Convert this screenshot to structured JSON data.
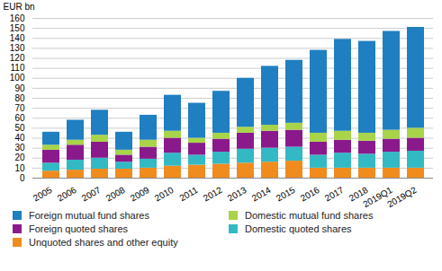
{
  "chart_data": {
    "type": "bar",
    "stacked": true,
    "grid": true,
    "y_label": "EUR bn",
    "categories": [
      "2005",
      "2006",
      "2007",
      "2008",
      "2009",
      "2010",
      "2011",
      "2012",
      "2013",
      "2014",
      "2015",
      "2016",
      "2017",
      "2018",
      "2019Q1",
      "2019Q2"
    ],
    "ylim": [
      0,
      160
    ],
    "yticks": [
      0,
      10,
      20,
      30,
      40,
      50,
      60,
      70,
      80,
      90,
      100,
      110,
      120,
      130,
      140,
      150,
      160
    ],
    "legend": "bottom",
    "series": [
      {
        "name": "Unquoted shares and other equity",
        "color": "#f08c1e",
        "values": [
          7,
          8,
          9,
          9,
          10,
          12,
          13,
          14,
          15,
          16,
          17,
          10,
          10,
          10,
          10,
          10
        ]
      },
      {
        "name": "Domestic quoted shares",
        "color": "#33b9c4",
        "values": [
          8,
          10,
          11,
          7,
          9,
          13,
          10,
          12,
          14,
          14,
          14,
          13,
          15,
          14,
          16,
          17
        ]
      },
      {
        "name": "Foreign quoted shares",
        "color": "#8a1a8c",
        "values": [
          13,
          15,
          16,
          7,
          12,
          15,
          12,
          13,
          16,
          17,
          17,
          13,
          13,
          13,
          13,
          13
        ]
      },
      {
        "name": "Domestic mutual fund shares",
        "color": "#a8d44a",
        "values": [
          5,
          5,
          7,
          5,
          7,
          7,
          5,
          6,
          6,
          6,
          7,
          9,
          9,
          8,
          9,
          10
        ]
      },
      {
        "name": "Foreign mutual fund shares",
        "color": "#1f7fc0",
        "values": [
          13,
          20,
          25,
          18,
          25,
          36,
          35,
          42,
          49,
          59,
          63,
          83,
          92,
          92,
          99,
          101
        ]
      }
    ]
  }
}
